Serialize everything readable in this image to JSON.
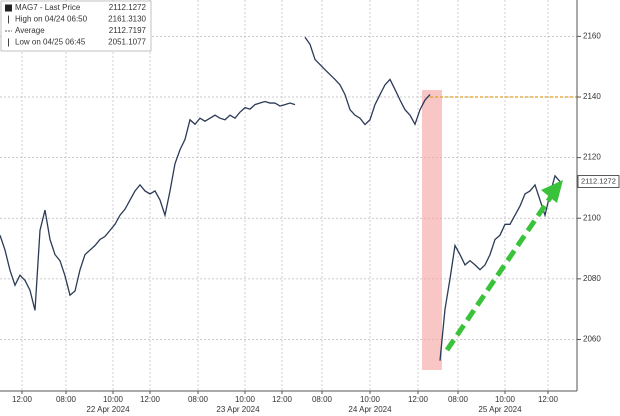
{
  "chart_data": {
    "type": "line",
    "legend": [
      {
        "name": "MAG7 - Last Price",
        "value": "2112.1272"
      },
      {
        "name": "High on 04/24 06:50",
        "value": "2161.3130"
      },
      {
        "name": "Average",
        "value": "2112.7197"
      },
      {
        "name": "Low on 04/25 06:45",
        "value": "2051.1077"
      }
    ],
    "series": [
      {
        "name": "MAG7",
        "color": "#2b3a55",
        "values": [
          2094.4,
          2089.5,
          2082.8,
          2077.9,
          2081.2,
          2079.5,
          2076.2,
          2069.6,
          2096,
          2102.7,
          2093,
          2088,
          2086,
          2081,
          2074.6,
          2076,
          2083,
          2088,
          2089.5,
          2091,
          2093,
          2094,
          2096,
          2098,
          2101,
          2103,
          2106,
          2109,
          2111,
          2109,
          2108,
          2109,
          2106,
          2101,
          2109,
          2118,
          2122.6,
          2126,
          2132.5,
          2131,
          2133,
          2132,
          2133,
          2134,
          2133,
          2132.5,
          2134,
          2133,
          2135,
          2136.5,
          2136,
          2137.5,
          2138,
          2138.5,
          2138,
          2138,
          2137,
          2137.5,
          2138,
          2137.5,
          null,
          2159.7,
          2157.4,
          2152.4,
          2150.7,
          2149,
          2147.4,
          2145.8,
          2144,
          2140.8,
          2135.8,
          2134,
          2133,
          2130.9,
          2132.5,
          2137.5,
          2140.8,
          2144,
          2145.8,
          2142.5,
          2139,
          2135.8,
          2134,
          2131,
          2135.8,
          2139,
          2140.8,
          null,
          2053,
          2070,
          2080,
          2091,
          2088,
          2084.6,
          2086,
          2084.6,
          2083,
          2084.6,
          2088,
          2093,
          2094.4,
          2098,
          2098,
          2101,
          2104,
          2108,
          2109,
          2111,
          2106,
          2101,
          2108,
          2114,
          2112.1
        ]
      }
    ],
    "last_price_label": "2112.1272",
    "reference_line": {
      "value": 2140,
      "color": "#e0a020"
    },
    "ylim": [
      2043,
      2172
    ],
    "yticks": [
      2060,
      2080,
      2100,
      2120,
      2140,
      2160
    ],
    "xlim": [
      0,
      115.4
    ],
    "xticks": [
      {
        "value": 4.4,
        "label": "12:00"
      },
      {
        "value": 13.2,
        "label": "08:00"
      },
      {
        "value": 22.6,
        "label": "10:00"
      },
      {
        "value": 30,
        "label": "12:00"
      },
      {
        "value": 39.6,
        "label": "08:00"
      },
      {
        "value": 49,
        "label": "10:00"
      },
      {
        "value": 56.4,
        "label": "12:00"
      },
      {
        "value": 64.4,
        "label": "08:00"
      },
      {
        "value": 74,
        "label": "10:00"
      },
      {
        "value": 83.6,
        "label": "12:00"
      },
      {
        "value": 91.6,
        "label": "08:00"
      },
      {
        "value": 101,
        "label": "10:00"
      },
      {
        "value": 109.6,
        "label": "12:00"
      }
    ],
    "date_labels": [
      {
        "value": 21.6,
        "label": "22 Apr 2024"
      },
      {
        "value": 47.6,
        "label": "23 Apr 2024"
      },
      {
        "value": 74,
        "label": "24 Apr 2024"
      },
      {
        "value": 100,
        "label": "25 Apr 2024"
      }
    ],
    "grid": true
  }
}
